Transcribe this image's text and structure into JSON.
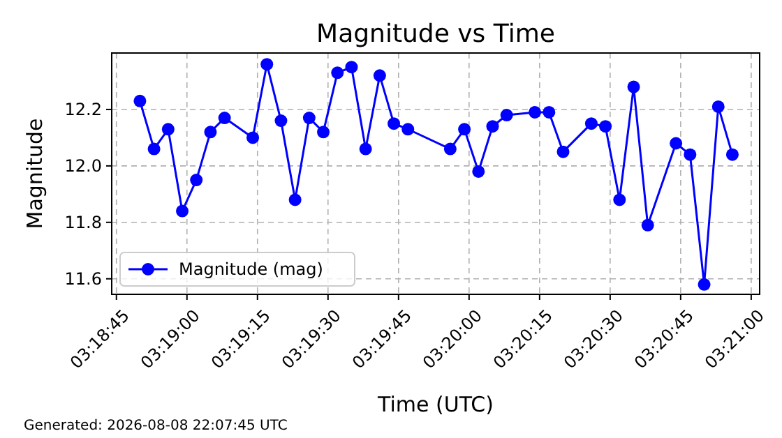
{
  "chart_data": {
    "type": "line",
    "title": "Magnitude vs Time",
    "xlabel": "Time (UTC)",
    "ylabel": "Magnitude",
    "x": [
      3.313889,
      3.314722,
      3.315556,
      3.316389,
      3.317222,
      3.318056,
      3.318889,
      3.320556,
      3.321389,
      3.322222,
      3.323056,
      3.323889,
      3.324722,
      3.325556,
      3.326389,
      3.327222,
      3.328056,
      3.328889,
      3.329722,
      3.332222,
      3.333056,
      3.333889,
      3.334722,
      3.335556,
      3.337222,
      3.338056,
      3.338889,
      3.340556,
      3.341389,
      3.342222,
      3.343056,
      3.343889,
      3.345556,
      3.346389,
      3.347222,
      3.348056,
      3.348889
    ],
    "series": [
      {
        "name": "Magnitude (mag)",
        "color": "#0000ff",
        "values": [
          12.23,
          12.06,
          12.13,
          11.84,
          11.95,
          12.12,
          12.17,
          12.1,
          12.36,
          12.16,
          11.88,
          12.17,
          12.12,
          12.33,
          12.35,
          12.06,
          12.32,
          12.15,
          12.13,
          12.06,
          12.13,
          11.98,
          12.14,
          12.18,
          12.19,
          12.19,
          12.05,
          12.15,
          12.14,
          11.88,
          12.28,
          11.79,
          12.08,
          12.04,
          11.58,
          12.21,
          12.04
        ]
      }
    ],
    "xlim": [
      3.312222,
      3.3505
    ],
    "ylim": [
      11.545,
      12.4
    ],
    "xticks": [
      {
        "value": 3.3125,
        "label": "03:18:45"
      },
      {
        "value": 3.316667,
        "label": "03:19:00"
      },
      {
        "value": 3.320833,
        "label": "03:19:15"
      },
      {
        "value": 3.325,
        "label": "03:19:30"
      },
      {
        "value": 3.329167,
        "label": "03:19:45"
      },
      {
        "value": 3.333333,
        "label": "03:20:00"
      },
      {
        "value": 3.3375,
        "label": "03:20:15"
      },
      {
        "value": 3.341667,
        "label": "03:20:30"
      },
      {
        "value": 3.345833,
        "label": "03:20:45"
      },
      {
        "value": 3.35,
        "label": "03:21:00"
      }
    ],
    "yticks": [
      {
        "value": 11.6,
        "label": "11.6"
      },
      {
        "value": 11.8,
        "label": "11.8"
      },
      {
        "value": 12.0,
        "label": "12.0"
      },
      {
        "value": 12.2,
        "label": "12.2"
      }
    ],
    "grid": true,
    "legend": "bottom left",
    "marker": "circle",
    "line_style": "solid",
    "annotations": [
      "Generated: 2026-08-08 22:07:45 UTC"
    ]
  }
}
